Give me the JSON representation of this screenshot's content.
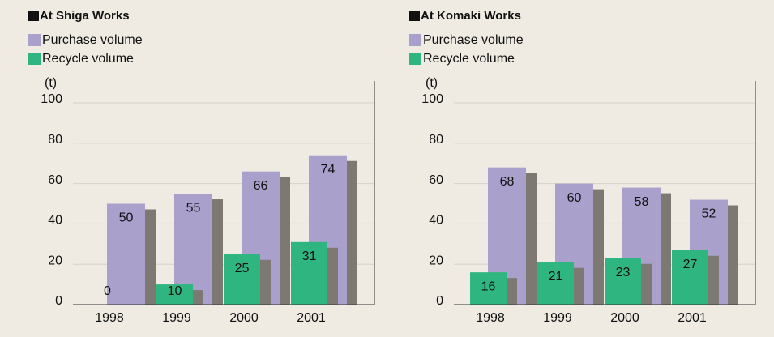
{
  "chart_data": [
    {
      "type": "bar",
      "title": "At Shiga Works",
      "y_label": "(t)",
      "categories": [
        "1998",
        "1999",
        "2000",
        "2001"
      ],
      "series": [
        {
          "name": "Purchase volume",
          "color": "#a9a0cc",
          "values": [
            50,
            55,
            66,
            74
          ]
        },
        {
          "name": "Recycle volume",
          "color": "#2fb57f",
          "values": [
            0,
            10,
            25,
            31
          ]
        }
      ],
      "ylim": [
        0,
        100
      ],
      "yticks": [
        0,
        20,
        40,
        60,
        80,
        100
      ],
      "grid": true
    },
    {
      "type": "bar",
      "title": "At Komaki Works",
      "y_label": "(t)",
      "categories": [
        "1998",
        "1999",
        "2000",
        "2001"
      ],
      "series": [
        {
          "name": "Purchase volume",
          "color": "#a9a0cc",
          "values": [
            68,
            60,
            58,
            52
          ]
        },
        {
          "name": "Recycle volume",
          "color": "#2fb57f",
          "values": [
            16,
            21,
            23,
            27
          ]
        }
      ],
      "ylim": [
        0,
        100
      ],
      "yticks": [
        0,
        20,
        40,
        60,
        80,
        100
      ],
      "grid": true
    }
  ]
}
